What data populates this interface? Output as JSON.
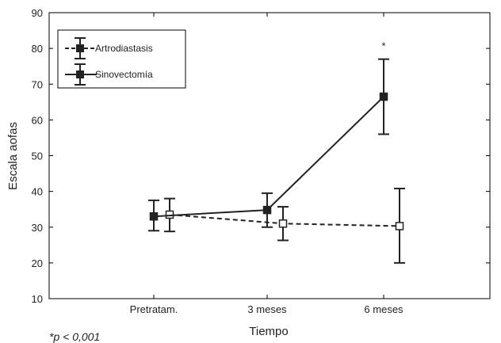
{
  "chart_data": {
    "type": "line",
    "title": "",
    "xlabel": "Tiempo",
    "ylabel": "Escala aofas",
    "categories": [
      "Pretratam.",
      "3 meses",
      "6 meses"
    ],
    "ylim": [
      10,
      90
    ],
    "yticks": [
      10,
      20,
      30,
      40,
      50,
      60,
      70,
      80,
      90
    ],
    "grid": false,
    "legend_position": "top-left",
    "series": [
      {
        "name": "Artrodiastasis",
        "line_style": "dashed",
        "marker": "open-square",
        "values": [
          33.5,
          31,
          30.3
        ],
        "error_low": [
          28.8,
          26.3,
          20
        ],
        "error_high": [
          38,
          35.7,
          40.8
        ]
      },
      {
        "name": "Sinovectomía",
        "line_style": "solid",
        "marker": "filled-square",
        "values": [
          33,
          34.8,
          66.5
        ],
        "error_low": [
          29,
          30,
          56
        ],
        "error_high": [
          37.5,
          39.5,
          77
        ]
      }
    ],
    "annotations": [
      {
        "text": "*",
        "category": "6 meses"
      }
    ],
    "footnote": "*p < 0,001",
    "colors": {
      "lines": "#222222",
      "axes": "#000000",
      "background": "#ffffff"
    }
  }
}
